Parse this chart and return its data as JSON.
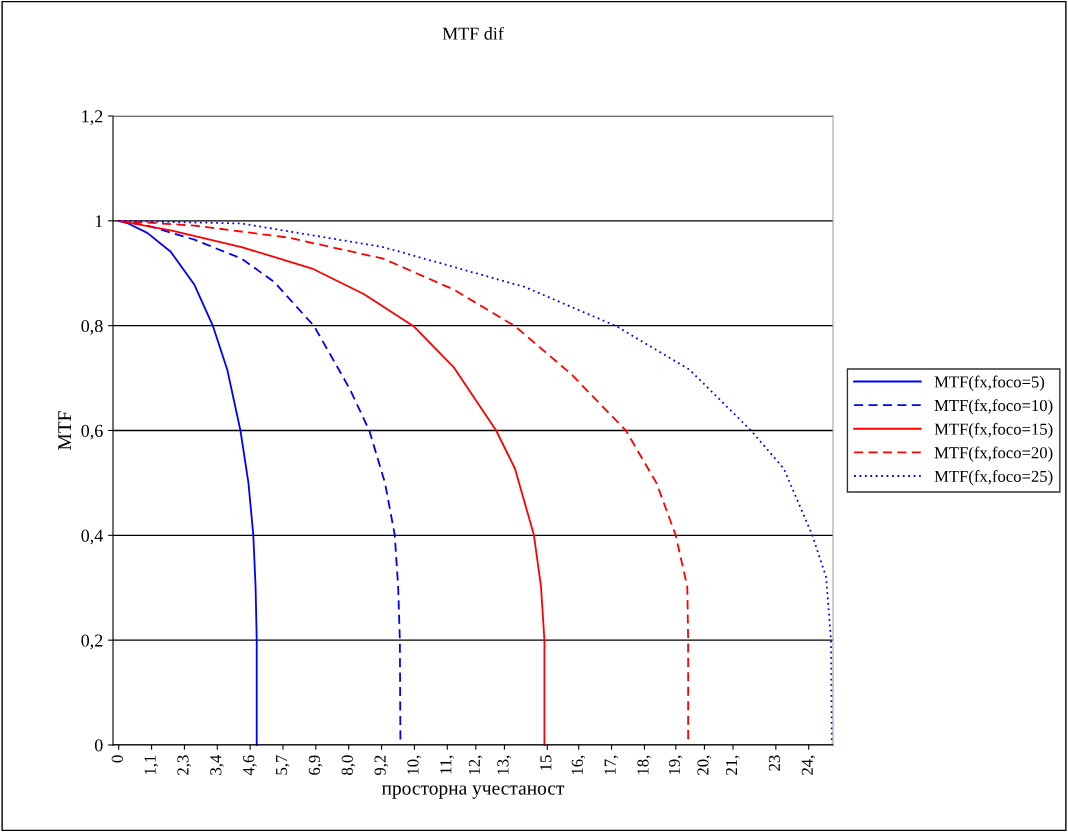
{
  "chart_data": {
    "type": "line",
    "title": "MTF dif",
    "xlabel": "просторна учестаност",
    "ylabel": "MTF",
    "xlim": [
      -0.2,
      25
    ],
    "ylim": [
      0,
      1.2
    ],
    "xticks": [
      0,
      {
        "value": 1.15,
        "label": "1,1"
      },
      {
        "value": 2.3,
        "label": "2,3"
      },
      {
        "value": 3.45,
        "label": "3,4"
      },
      {
        "value": 4.6,
        "label": "4,6"
      },
      {
        "value": 5.75,
        "label": "5,7"
      },
      {
        "value": 6.9,
        "label": "6,9"
      },
      {
        "value": 8.05,
        "label": "8,0"
      },
      {
        "value": 9.2,
        "label": "9,2"
      },
      {
        "value": 10.35,
        "label": "10,"
      },
      {
        "value": 11.5,
        "label": "11,"
      },
      {
        "value": 12.5,
        "label": "12,"
      },
      {
        "value": 13.5,
        "label": "13,"
      },
      15,
      {
        "value": 16.1,
        "label": "16,"
      },
      {
        "value": 17.25,
        "label": "17,"
      },
      {
        "value": 18.4,
        "label": "18,"
      },
      {
        "value": 19.5,
        "label": "19,"
      },
      {
        "value": 20.5,
        "label": "20,"
      },
      {
        "value": 21.5,
        "label": "21,"
      },
      23,
      {
        "value": 24.15,
        "label": "24,"
      }
    ],
    "yticks": [
      0,
      {
        "value": 0.2,
        "label": "0,2"
      },
      {
        "value": 0.4,
        "label": "0,4"
      },
      {
        "value": 0.6,
        "label": "0,6"
      },
      {
        "value": 0.8,
        "label": "0,8"
      },
      1,
      {
        "value": 1.2,
        "label": "1,2"
      }
    ],
    "grid": "y",
    "legend": "right",
    "marker": "none",
    "series": [
      {
        "name": "MTF(fx,foco=5)",
        "color": "#0000ff",
        "line_style": "solid",
        "x": [
          0,
          0.33,
          1.0,
          1.82,
          2.65,
          3.3,
          3.8,
          4.26,
          4.54,
          4.71,
          4.79,
          4.83,
          4.83
        ],
        "values": [
          1.0,
          0.995,
          0.977,
          0.941,
          0.878,
          0.799,
          0.716,
          0.6,
          0.5,
          0.401,
          0.302,
          0.2,
          0
        ]
      },
      {
        "name": "MTF(fx,foco=10)",
        "color": "#0000ff",
        "line_style": "dashed",
        "x": [
          0,
          1.0,
          2.65,
          4.3,
          5.45,
          6.84,
          8.08,
          8.77,
          9.32,
          9.66,
          9.78,
          9.84,
          9.86
        ],
        "values": [
          1.0,
          0.991,
          0.964,
          0.928,
          0.883,
          0.799,
          0.68,
          0.6,
          0.5,
          0.401,
          0.302,
          0.2,
          0
        ]
      },
      {
        "name": "MTF(fx,foco=15)",
        "color": "#ff0000",
        "line_style": "solid",
        "x": [
          0,
          1.82,
          4.3,
          6.77,
          8.59,
          10.32,
          11.72,
          13.21,
          13.87,
          14.53,
          14.78,
          14.9,
          14.9
        ],
        "values": [
          1.0,
          0.982,
          0.95,
          0.909,
          0.86,
          0.799,
          0.721,
          0.6,
          0.527,
          0.401,
          0.302,
          0.2,
          0
        ]
      },
      {
        "name": "MTF(fx,foco=20)",
        "color": "#ff0000",
        "line_style": "dashed",
        "x": [
          0,
          2.65,
          5.94,
          9.25,
          11.72,
          13.87,
          15.85,
          17.75,
          18.82,
          19.49,
          19.9,
          19.93,
          19.93
        ],
        "values": [
          1.0,
          0.991,
          0.968,
          0.928,
          0.869,
          0.799,
          0.707,
          0.6,
          0.5,
          0.401,
          0.302,
          0.2,
          0
        ]
      },
      {
        "name": "MTF(fx,foco=25)",
        "color": "#0000ff",
        "line_style": "dotted",
        "x": [
          0,
          4.3,
          9.25,
          14.2,
          17.42,
          19.98,
          22.13,
          23.28,
          24.27,
          24.76,
          24.93,
          24.96
        ],
        "values": [
          1.0,
          0.995,
          0.95,
          0.874,
          0.799,
          0.716,
          0.6,
          0.527,
          0.401,
          0.32,
          0.2,
          0
        ]
      }
    ]
  }
}
